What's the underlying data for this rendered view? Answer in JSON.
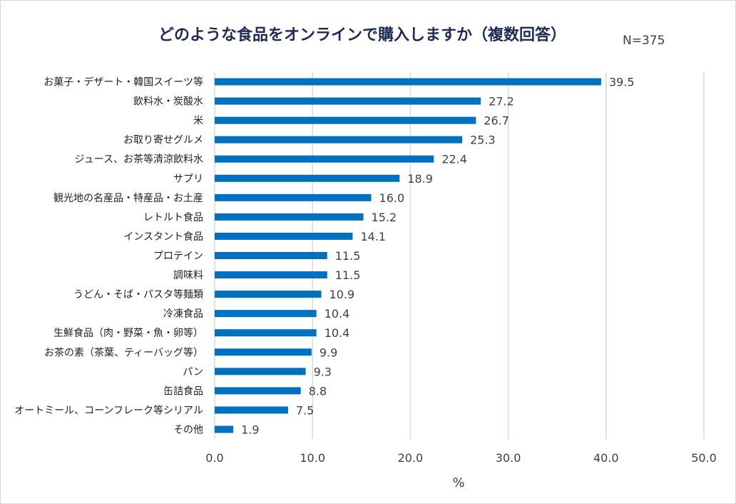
{
  "chart_data": {
    "type": "bar",
    "orientation": "horizontal",
    "title": "どのような食品をオンラインで購入しますか（複数回答）",
    "sample_size_label": "N=375",
    "xlabel": "%",
    "ylabel": "",
    "xlim": [
      0,
      50
    ],
    "ticks": [
      "0.0",
      "10.0",
      "20.0",
      "30.0",
      "40.0",
      "50.0"
    ],
    "tick_values": [
      0,
      10,
      20,
      30,
      40,
      50
    ],
    "grid": true,
    "bar_color": "#0070c0",
    "categories": [
      "お菓子・デザート・韓国スイーツ等",
      "飲料水・炭酸水",
      "米",
      "お取り寄せグルメ",
      "ジュース、お茶等清涼飲料水",
      "サプリ",
      "観光地の名産品・特産品・お土産",
      "レトルト食品",
      "インスタント食品",
      "プロテイン",
      "調味料",
      "うどん・そば・パスタ等麺類",
      "冷凍食品",
      "生鮮食品（肉・野菜・魚・卵等）",
      "お茶の素（茶葉、ティーバッグ等）",
      "パン",
      "缶詰食品",
      "オートミール、コーンフレーク等シリアル",
      "その他"
    ],
    "values": [
      39.5,
      27.2,
      26.7,
      25.3,
      22.4,
      18.9,
      16.0,
      15.2,
      14.1,
      11.5,
      11.5,
      10.9,
      10.4,
      10.4,
      9.9,
      9.3,
      8.8,
      7.5,
      1.9
    ],
    "value_labels": [
      "39.5",
      "27.2",
      "26.7",
      "25.3",
      "22.4",
      "18.9",
      "16.0",
      "15.2",
      "14.1",
      "11.5",
      "11.5",
      "10.9",
      "10.4",
      "10.4",
      "9.9",
      "9.3",
      "8.8",
      "7.5",
      "1.9"
    ]
  }
}
